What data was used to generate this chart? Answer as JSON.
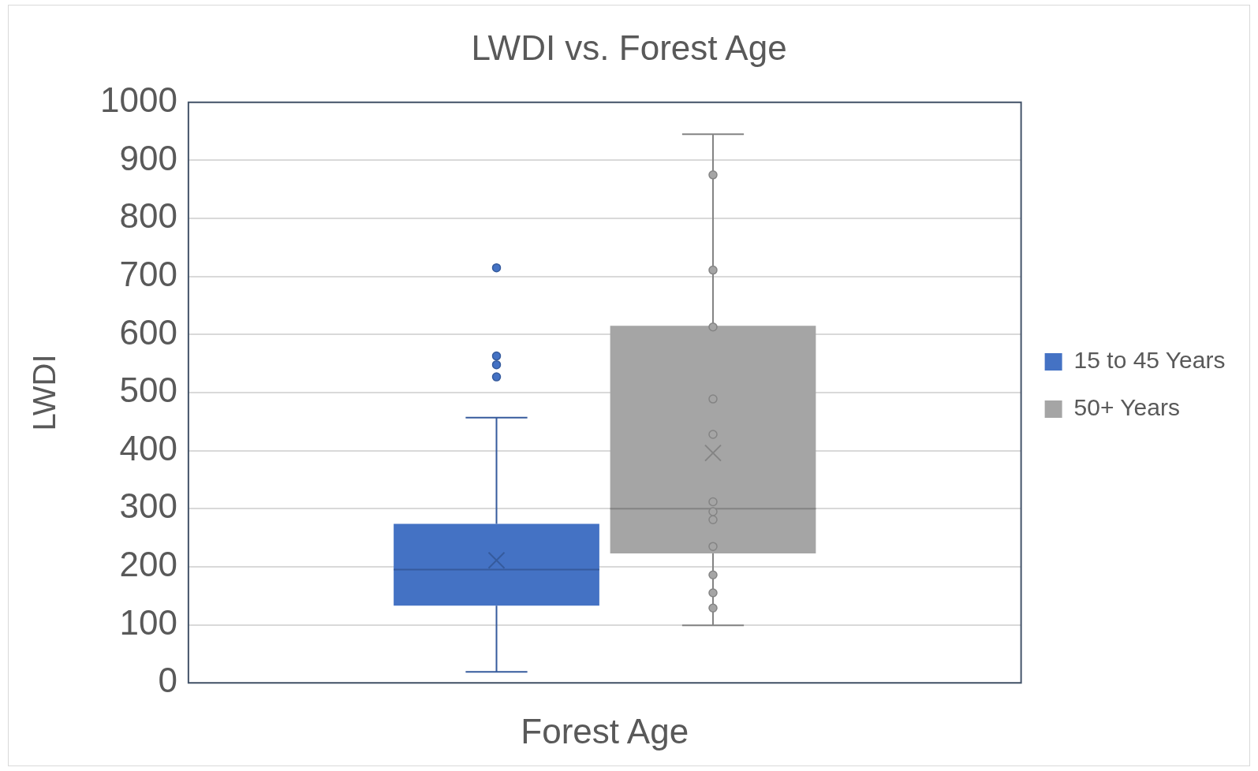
{
  "chart_data": {
    "type": "box",
    "title": "LWDI vs. Forest Age",
    "xlabel": "Forest Age",
    "ylabel": "LWDI",
    "categories": [
      null
    ],
    "series": [
      {
        "name": "15 to 45 Years",
        "color": "#4472c4",
        "boxes": [
          {
            "low": 19,
            "q1": 133,
            "median": 195,
            "q3": 274,
            "high": 457,
            "mean": 211,
            "outliers": [
              527,
              548,
              563,
              715
            ]
          }
        ]
      },
      {
        "name": "50+ Years",
        "color": "#a5a5a5",
        "boxes": [
          {
            "low": 99,
            "q1": 223,
            "median": 300,
            "q3": 615,
            "high": 945,
            "mean": 396,
            "outliers": [
              129,
              155,
              186,
              235,
              281,
              295,
              312,
              428,
              489,
              613,
              711,
              875
            ]
          }
        ]
      }
    ],
    "ylim": [
      0,
      1000
    ],
    "yticks": [
      0,
      100,
      200,
      300,
      400,
      500,
      600,
      700,
      800,
      900,
      1000
    ],
    "grid": "y",
    "legend": "right",
    "tick_labels": "y"
  }
}
